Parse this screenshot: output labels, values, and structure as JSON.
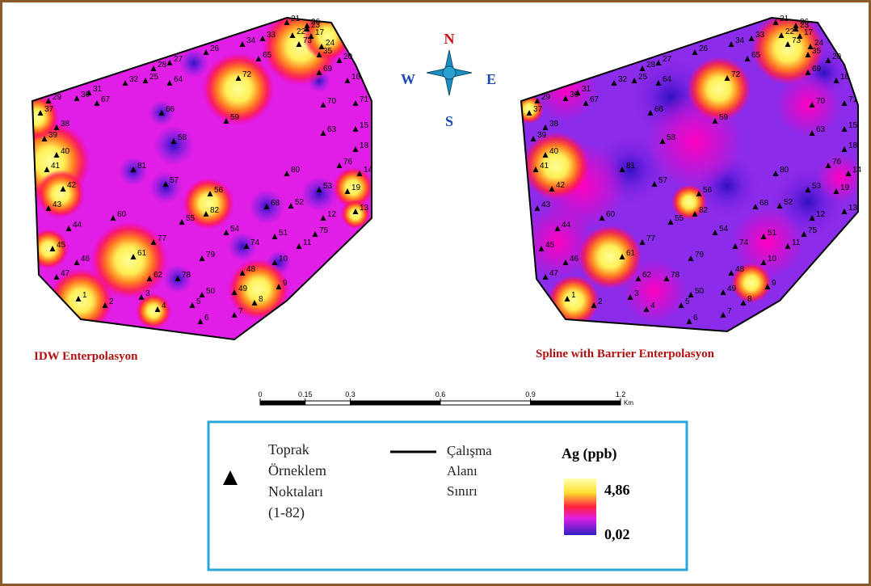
{
  "maps": [
    {
      "title": "IDW Enterpolasyon"
    },
    {
      "title": "Spline with Barrier Enterpolasyon"
    }
  ],
  "sample_points": [
    1,
    2,
    3,
    4,
    5,
    6,
    7,
    8,
    9,
    10,
    11,
    12,
    13,
    14,
    15,
    16,
    17,
    18,
    19,
    20,
    21,
    22,
    23,
    24,
    25,
    26,
    27,
    28,
    29,
    30,
    31,
    32,
    33,
    34,
    35,
    36,
    37,
    38,
    39,
    40,
    41,
    42,
    43,
    44,
    45,
    46,
    47,
    48,
    49,
    50,
    51,
    52,
    53,
    54,
    55,
    56,
    57,
    58,
    59,
    60,
    61,
    62,
    63,
    64,
    65,
    66,
    67,
    68,
    69,
    70,
    71,
    72,
    73,
    74,
    75,
    76,
    77,
    78,
    79,
    80,
    81,
    82
  ],
  "compass": {
    "n": "N",
    "e": "E",
    "s": "S",
    "w": "W"
  },
  "scale_bar": {
    "ticks": [
      0,
      0.15,
      0.3,
      0.6,
      0.9,
      1.2
    ],
    "unit": "Km"
  },
  "legend": {
    "points": [
      "Toprak",
      "Örneklem",
      "Noktaları",
      "(1-82)"
    ],
    "boundary": [
      "Çalışma",
      "Alanı",
      "Sınırı"
    ],
    "ramp_title": "Ag (ppb)",
    "high": "4,86",
    "low": "0,02"
  }
}
